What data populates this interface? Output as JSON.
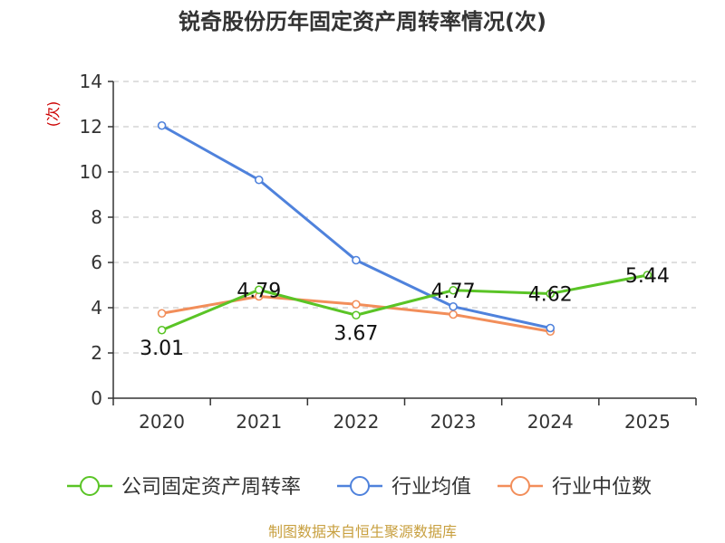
{
  "chart_data": {
    "type": "line",
    "title": "锐奇股份历年固定资产周转率情况(次)",
    "ylabel": "(次)",
    "xlabel": "",
    "categories": [
      "2020",
      "2021",
      "2022",
      "2023",
      "2024",
      "2025"
    ],
    "ylim": [
      0,
      14
    ],
    "yticks": [
      0,
      2,
      4,
      6,
      8,
      10,
      12,
      14
    ],
    "grid": true,
    "legend_position": "bottom",
    "series": [
      {
        "name": "公司固定资产周转率",
        "color": "#5ac426",
        "values": [
          3.01,
          4.79,
          3.67,
          4.77,
          4.62,
          5.44
        ],
        "labels": [
          "3.01",
          "4.79",
          "3.67",
          "4.77",
          "4.62",
          "5.44"
        ]
      },
      {
        "name": "行业均值",
        "color": "#4f82dc",
        "values": [
          12.05,
          9.65,
          6.1,
          4.05,
          3.1,
          null
        ]
      },
      {
        "name": "行业中位数",
        "color": "#f28e5a",
        "values": [
          3.75,
          4.5,
          4.15,
          3.7,
          2.95,
          null
        ]
      }
    ]
  },
  "source": "制图数据来自恒生聚源数据库"
}
